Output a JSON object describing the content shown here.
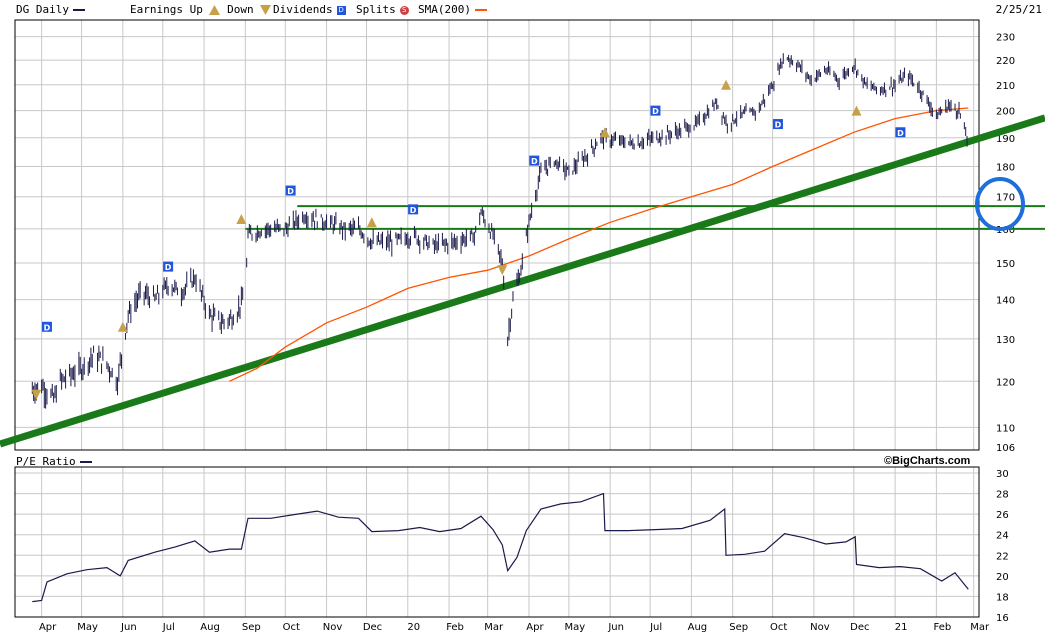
{
  "header": {
    "ticker_label": "DG Daily",
    "earnings_up_label": "Earnings Up",
    "down_label": "Down",
    "dividends_label": "Dividends",
    "splits_label": "Splits",
    "sma_label": "SMA(200)",
    "date": "2/25/21",
    "credit": "©BigCharts.com",
    "pe_label": "P/E Ratio"
  },
  "colors": {
    "price": "#1a1a4a",
    "sma": "#ff5500",
    "trend": "#1a7a1a",
    "grid": "#c8c8c8",
    "circle": "#1e6fd9",
    "earnings": "#c9a04a",
    "dividend": "#2255dd"
  },
  "chart_data": [
    {
      "type": "line",
      "name": "price-panel",
      "yaxis_ticks": [
        106,
        110,
        120,
        130,
        140,
        150,
        160,
        170,
        180,
        190,
        200,
        210,
        220,
        230
      ],
      "ylim": [
        106,
        232
      ],
      "y_scale": "log",
      "x_ticks": [
        "Apr",
        "May",
        "Jun",
        "Jul",
        "Aug",
        "Sep",
        "Oct",
        "Nov",
        "Dec",
        "20",
        "Feb",
        "Mar",
        "Apr",
        "May",
        "Jun",
        "Jul",
        "Aug",
        "Sep",
        "Oct",
        "Nov",
        "Dec",
        "21",
        "Feb",
        "Mar"
      ],
      "price_points": [
        [
          "2019-03-25",
          118
        ],
        [
          "2019-04-01",
          119
        ],
        [
          "2019-04-10",
          116
        ],
        [
          "2019-04-15",
          120
        ],
        [
          "2019-05-01",
          123
        ],
        [
          "2019-05-10",
          126
        ],
        [
          "2019-05-20",
          124
        ],
        [
          "2019-05-28",
          120
        ],
        [
          "2019-06-05",
          136
        ],
        [
          "2019-06-15",
          142
        ],
        [
          "2019-06-25",
          140
        ],
        [
          "2019-07-05",
          144
        ],
        [
          "2019-07-15",
          142
        ],
        [
          "2019-07-25",
          146
        ],
        [
          "2019-08-05",
          136
        ],
        [
          "2019-08-15",
          134
        ],
        [
          "2019-08-25",
          136
        ],
        [
          "2019-09-01",
          142
        ],
        [
          "2019-09-03",
          158
        ],
        [
          "2019-09-15",
          160
        ],
        [
          "2019-10-01",
          160
        ],
        [
          "2019-10-15",
          164
        ],
        [
          "2019-11-01",
          162
        ],
        [
          "2019-11-15",
          160
        ],
        [
          "2019-11-25",
          160
        ],
        [
          "2019-12-05",
          156
        ],
        [
          "2019-12-20",
          156
        ],
        [
          "2020-01-05",
          158
        ],
        [
          "2020-01-20",
          155
        ],
        [
          "2020-02-05",
          156
        ],
        [
          "2020-02-20",
          158
        ],
        [
          "2020-02-25",
          165
        ],
        [
          "2020-03-05",
          158
        ],
        [
          "2020-03-12",
          150
        ],
        [
          "2020-03-16",
          130
        ],
        [
          "2020-03-20",
          140
        ],
        [
          "2020-03-26",
          148
        ],
        [
          "2020-04-01",
          162
        ],
        [
          "2020-04-10",
          178
        ],
        [
          "2020-04-20",
          182
        ],
        [
          "2020-05-01",
          178
        ],
        [
          "2020-05-15",
          184
        ],
        [
          "2020-05-25",
          190
        ],
        [
          "2020-06-05",
          189
        ],
        [
          "2020-06-20",
          188
        ],
        [
          "2020-07-05",
          190
        ],
        [
          "2020-07-20",
          192
        ],
        [
          "2020-08-05",
          195
        ],
        [
          "2020-08-20",
          203
        ],
        [
          "2020-08-28",
          195
        ],
        [
          "2020-09-05",
          198
        ],
        [
          "2020-09-20",
          200
        ],
        [
          "2020-10-01",
          210
        ],
        [
          "2020-10-10",
          222
        ],
        [
          "2020-10-20",
          218
        ],
        [
          "2020-10-30",
          212
        ],
        [
          "2020-11-10",
          216
        ],
        [
          "2020-11-20",
          212
        ],
        [
          "2020-12-01",
          218
        ],
        [
          "2020-12-10",
          210
        ],
        [
          "2020-12-20",
          208
        ],
        [
          "2021-01-01",
          210
        ],
        [
          "2021-01-10",
          214
        ],
        [
          "2021-01-20",
          208
        ],
        [
          "2021-02-01",
          198
        ],
        [
          "2021-02-10",
          202
        ],
        [
          "2021-02-18",
          200
        ],
        [
          "2021-02-25",
          188
        ]
      ],
      "sma_points": [
        [
          "2019-08-20",
          120
        ],
        [
          "2019-09-10",
          123
        ],
        [
          "2019-10-01",
          128
        ],
        [
          "2019-11-01",
          134
        ],
        [
          "2019-12-01",
          138
        ],
        [
          "2020-01-01",
          143
        ],
        [
          "2020-02-01",
          146
        ],
        [
          "2020-03-01",
          148
        ],
        [
          "2020-04-01",
          152
        ],
        [
          "2020-05-01",
          157
        ],
        [
          "2020-06-01",
          162
        ],
        [
          "2020-07-01",
          166
        ],
        [
          "2020-08-01",
          170
        ],
        [
          "2020-09-01",
          174
        ],
        [
          "2020-10-01",
          180
        ],
        [
          "2020-11-01",
          186
        ],
        [
          "2020-12-01",
          192
        ],
        [
          "2021-01-01",
          197
        ],
        [
          "2021-02-01",
          200
        ],
        [
          "2021-02-25",
          201
        ]
      ],
      "horizontal_lines": [
        {
          "value": 167,
          "from": "2019-10-10",
          "to": "2021-03-15"
        },
        {
          "value": 160,
          "from": "2019-09-01",
          "to": "2021-03-15"
        }
      ],
      "trend_line": {
        "from": [
          "2019-03-05",
          107
        ],
        "to": [
          "2021-03-20",
          190
        ]
      },
      "earnings_markers": [
        [
          "2019-03-28",
          117,
          "down"
        ],
        [
          "2019-06-01",
          133,
          "up"
        ],
        [
          "2019-08-29",
          163,
          "up"
        ],
        [
          "2019-12-05",
          162,
          "up"
        ],
        [
          "2020-03-12",
          148,
          "down"
        ],
        [
          "2020-05-28",
          192,
          "up"
        ],
        [
          "2020-08-27",
          210,
          "up"
        ],
        [
          "2020-12-03",
          200,
          "up"
        ]
      ],
      "dividend_markers": [
        [
          "2019-04-05",
          133
        ],
        [
          "2019-07-05",
          149
        ],
        [
          "2019-10-05",
          172
        ],
        [
          "2020-01-05",
          166
        ],
        [
          "2020-04-05",
          182
        ],
        [
          "2020-07-05",
          200
        ],
        [
          "2020-10-05",
          195
        ],
        [
          "2021-01-05",
          192
        ]
      ]
    },
    {
      "type": "line",
      "name": "pe-ratio",
      "yaxis_ticks": [
        16,
        18,
        20,
        22,
        24,
        26,
        28,
        30
      ],
      "ylim": [
        16,
        30
      ],
      "points": [
        [
          "2019-03-25",
          17.5
        ],
        [
          "2019-04-01",
          17.6
        ],
        [
          "2019-04-05",
          19.4
        ],
        [
          "2019-04-20",
          20.2
        ],
        [
          "2019-05-05",
          20.6
        ],
        [
          "2019-05-20",
          20.8
        ],
        [
          "2019-05-30",
          20.0
        ],
        [
          "2019-06-05",
          21.5
        ],
        [
          "2019-06-25",
          22.3
        ],
        [
          "2019-07-10",
          22.8
        ],
        [
          "2019-07-25",
          23.4
        ],
        [
          "2019-08-05",
          22.3
        ],
        [
          "2019-08-20",
          22.6
        ],
        [
          "2019-08-29",
          22.6
        ],
        [
          "2019-09-03",
          25.6
        ],
        [
          "2019-09-20",
          25.6
        ],
        [
          "2019-10-10",
          26.0
        ],
        [
          "2019-10-25",
          26.3
        ],
        [
          "2019-11-10",
          25.7
        ],
        [
          "2019-11-25",
          25.6
        ],
        [
          "2019-12-05",
          24.3
        ],
        [
          "2019-12-25",
          24.4
        ],
        [
          "2020-01-10",
          24.7
        ],
        [
          "2020-01-25",
          24.3
        ],
        [
          "2020-02-10",
          24.6
        ],
        [
          "2020-02-25",
          25.8
        ],
        [
          "2020-03-05",
          24.5
        ],
        [
          "2020-03-12",
          23.0
        ],
        [
          "2020-03-16",
          20.5
        ],
        [
          "2020-03-23",
          21.8
        ],
        [
          "2020-03-30",
          24.4
        ],
        [
          "2020-04-10",
          26.5
        ],
        [
          "2020-04-25",
          27.0
        ],
        [
          "2020-05-10",
          27.2
        ],
        [
          "2020-05-27",
          28.0
        ],
        [
          "2020-05-28",
          24.4
        ],
        [
          "2020-06-15",
          24.4
        ],
        [
          "2020-07-05",
          24.5
        ],
        [
          "2020-07-25",
          24.6
        ],
        [
          "2020-08-15",
          25.4
        ],
        [
          "2020-08-26",
          26.5
        ],
        [
          "2020-08-27",
          22.0
        ],
        [
          "2020-09-10",
          22.1
        ],
        [
          "2020-09-25",
          22.4
        ],
        [
          "2020-10-10",
          24.1
        ],
        [
          "2020-10-25",
          23.7
        ],
        [
          "2020-11-10",
          23.1
        ],
        [
          "2020-11-25",
          23.3
        ],
        [
          "2020-12-02",
          23.8
        ],
        [
          "2020-12-03",
          21.1
        ],
        [
          "2020-12-20",
          20.8
        ],
        [
          "2021-01-05",
          20.9
        ],
        [
          "2021-01-20",
          20.7
        ],
        [
          "2021-02-05",
          19.5
        ],
        [
          "2021-02-15",
          20.3
        ],
        [
          "2021-02-25",
          18.7
        ]
      ]
    }
  ]
}
